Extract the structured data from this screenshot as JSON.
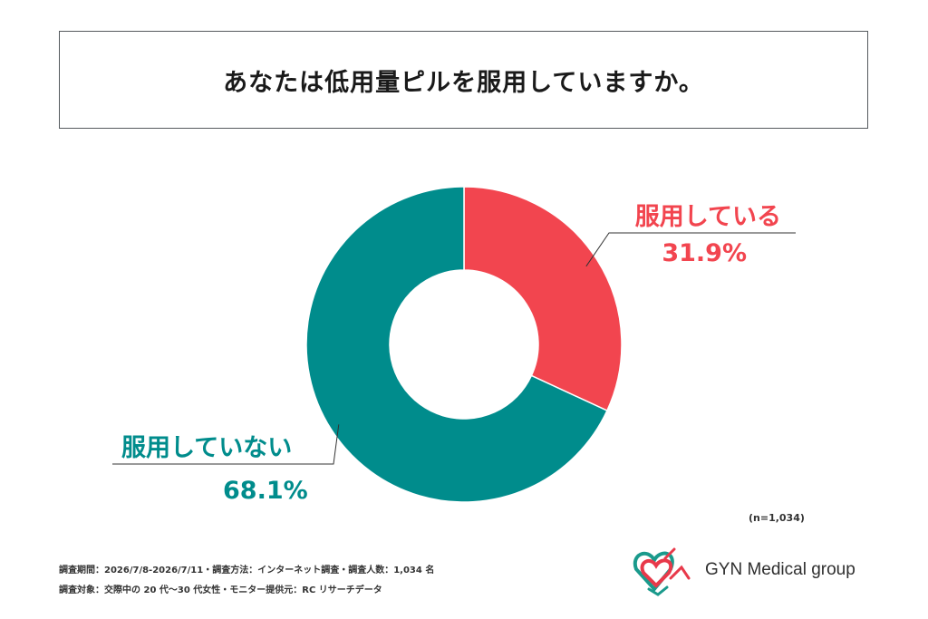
{
  "title": "あなたは低用量ピルを服用していますか。",
  "chart_data": {
    "type": "pie",
    "categories": [
      "服用している",
      "服用していない"
    ],
    "values": [
      31.9,
      68.1
    ],
    "value_labels": [
      "31.9%",
      "68.1%"
    ],
    "colors": [
      "#f2454f",
      "#008c8c"
    ],
    "donut": true
  },
  "sample_size": "(n=1,034)",
  "footnotes": {
    "line1": "調査期間：2026/7/8-2026/7/11・調査方法：インターネット調査・調査人数：1,034 名",
    "line2": "調査対象：交際中の 20 代〜30 代女性・モニター提供元：RC リサーチデータ"
  },
  "logo": {
    "text": "GYN Medical group",
    "icon": "gyn-heart-logo-icon",
    "colors": [
      "#e8394a",
      "#1a9a8c"
    ]
  }
}
